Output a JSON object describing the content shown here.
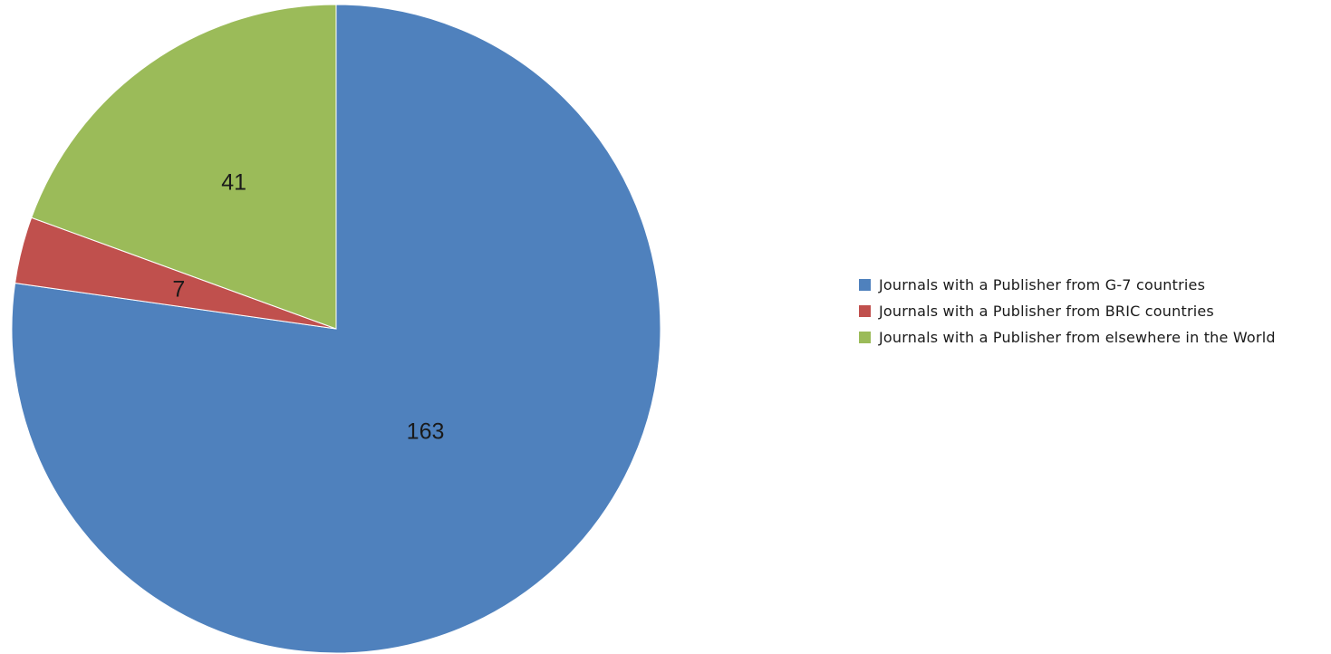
{
  "chart_data": {
    "type": "pie",
    "title": "",
    "start_angle_deg": 0,
    "direction": "clockwise",
    "slices": [
      {
        "label": "Journals with a Publisher from G-7 countries",
        "value": 163,
        "color": "#4f81bd"
      },
      {
        "label": "Journals with a Publisher from BRIC countries",
        "value": 7,
        "color": "#c0504d"
      },
      {
        "label": "Journals with a Publisher from elsewhere in the World",
        "value": 41,
        "color": "#9bbb59"
      }
    ],
    "legend_placement": "right",
    "data_labels": true
  }
}
